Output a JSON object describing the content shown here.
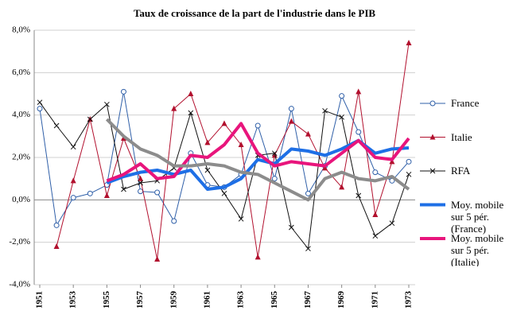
{
  "chart_data": {
    "type": "line",
    "title": "Taux de croissance de la part de l'industrie dans le PIB",
    "x": [
      1951,
      1952,
      1953,
      1954,
      1955,
      1956,
      1957,
      1958,
      1959,
      1960,
      1961,
      1962,
      1963,
      1964,
      1965,
      1966,
      1967,
      1968,
      1969,
      1970,
      1971,
      1972,
      1973
    ],
    "xlim": [
      1951,
      1973
    ],
    "xticks": [
      1951,
      1953,
      1955,
      1957,
      1959,
      1961,
      1963,
      1965,
      1967,
      1969,
      1971,
      1973
    ],
    "ylim": [
      -4,
      8
    ],
    "yticks": [
      {
        "value": -4,
        "label": "-4,0%"
      },
      {
        "value": -2,
        "label": "-2,0%"
      },
      {
        "value": 0,
        "label": "0,0%"
      },
      {
        "value": 2,
        "label": "2,0%"
      },
      {
        "value": 4,
        "label": "4,0%"
      },
      {
        "value": 6,
        "label": "6,0%"
      },
      {
        "value": 8,
        "label": "8,0%"
      }
    ],
    "grid": true,
    "series": [
      {
        "name": "France",
        "color": "#2f5fa8",
        "marker": "circle",
        "line_width": 1,
        "values": [
          4.3,
          -1.2,
          0.1,
          0.3,
          0.7,
          5.1,
          0.4,
          0.35,
          -1.0,
          2.2,
          0.7,
          0.6,
          1.2,
          3.5,
          1.0,
          4.3,
          0.3,
          1.6,
          4.9,
          3.2,
          1.3,
          0.9,
          1.8
        ]
      },
      {
        "name": "Italie",
        "color": "#b2102e",
        "marker": "triangle",
        "line_width": 1,
        "values": [
          null,
          -2.2,
          0.9,
          3.8,
          0.2,
          2.9,
          1.0,
          -2.8,
          4.3,
          5.0,
          2.7,
          3.6,
          2.6,
          -2.7,
          2.1,
          3.7,
          3.1,
          1.5,
          0.6,
          5.1,
          -0.7,
          1.8,
          7.4
        ]
      },
      {
        "name": "RFA",
        "color": "#111111",
        "marker": "x",
        "line_width": 1,
        "values": [
          4.6,
          3.5,
          2.5,
          3.8,
          4.5,
          0.5,
          0.8,
          0.9,
          1.5,
          4.1,
          1.4,
          0.3,
          -0.9,
          2.1,
          2.2,
          -1.3,
          -2.3,
          4.2,
          3.9,
          0.2,
          -1.7,
          -1.1,
          1.2
        ]
      },
      {
        "name": "Moy. mobile sur 5 pér. (France)",
        "color": "#1e6fe6",
        "marker": "none",
        "line_width": 4,
        "values": [
          null,
          null,
          null,
          null,
          0.8,
          1.1,
          1.3,
          1.4,
          1.2,
          1.4,
          0.5,
          0.6,
          1.0,
          1.9,
          1.7,
          2.4,
          2.3,
          2.1,
          2.4,
          2.8,
          2.2,
          2.4,
          2.45
        ]
      },
      {
        "name": "Moy. mobile sur 5 pér. (Italie)",
        "color": "#e8157c",
        "marker": "none",
        "line_width": 4,
        "values": [
          null,
          null,
          null,
          null,
          0.9,
          1.2,
          1.7,
          1.0,
          1.1,
          2.1,
          2.0,
          2.6,
          3.6,
          2.2,
          1.6,
          1.8,
          1.7,
          1.6,
          2.2,
          2.8,
          2.0,
          1.9,
          2.9
        ]
      },
      {
        "color": "#8c8c8c",
        "marker": "none",
        "line_width": 4,
        "values": [
          null,
          null,
          null,
          null,
          3.8,
          3.0,
          2.4,
          2.1,
          1.6,
          1.6,
          1.7,
          1.6,
          1.3,
          1.2,
          0.8,
          0.4,
          0.0,
          1.0,
          1.3,
          1.0,
          0.9,
          1.1,
          0.5
        ]
      }
    ]
  }
}
